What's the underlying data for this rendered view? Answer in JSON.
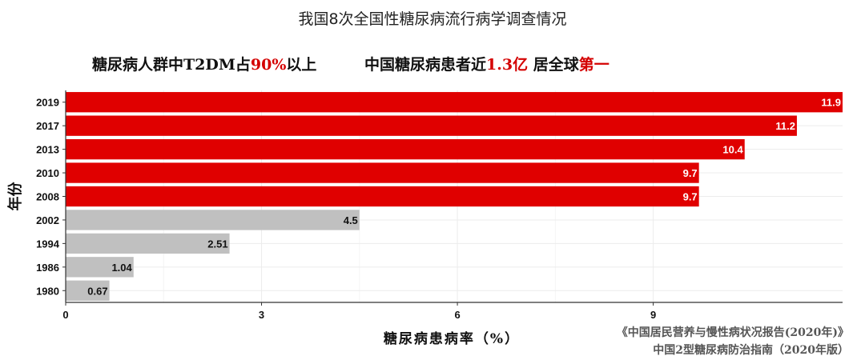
{
  "title": "我国8次全国性糖尿病流行病学调查情况",
  "subtitles": [
    {
      "pre": "糖尿病人群中T2DM占",
      "highlight": "90%",
      "post": "以上"
    },
    {
      "pre": "中国糖尿病患者近",
      "highlight": "1.3亿",
      "post": " 居全球",
      "highlight2": "第一"
    }
  ],
  "sources": [
    "《中国居民营养与慢性病状况报告(2020年)》",
    "中国2型糖尿病防治指南（2020年版）"
  ],
  "chart_data": {
    "type": "bar",
    "orientation": "horizontal",
    "xlabel": "糖尿病患病率（%）",
    "ylabel": "年份",
    "xlim": [
      0,
      11.9
    ],
    "xticks": [
      0,
      3,
      6,
      9
    ],
    "grid": true,
    "categories": [
      "2019",
      "2017",
      "2013",
      "2010",
      "2008",
      "2002",
      "1994",
      "1986",
      "1980"
    ],
    "values": [
      11.9,
      11.2,
      10.4,
      9.7,
      9.7,
      4.5,
      2.51,
      1.04,
      0.67
    ],
    "labels": [
      "11.9",
      "11.2",
      "10.4",
      "9.7",
      "9.7",
      "4.5",
      "2.51",
      "1.04",
      "0.67"
    ],
    "colors": [
      "#e00000",
      "#e00000",
      "#e00000",
      "#e00000",
      "#e00000",
      "#c0c0c0",
      "#c0c0c0",
      "#c0c0c0",
      "#c0c0c0"
    ],
    "highlight_color": "#e00000",
    "base_color": "#c0c0c0"
  }
}
